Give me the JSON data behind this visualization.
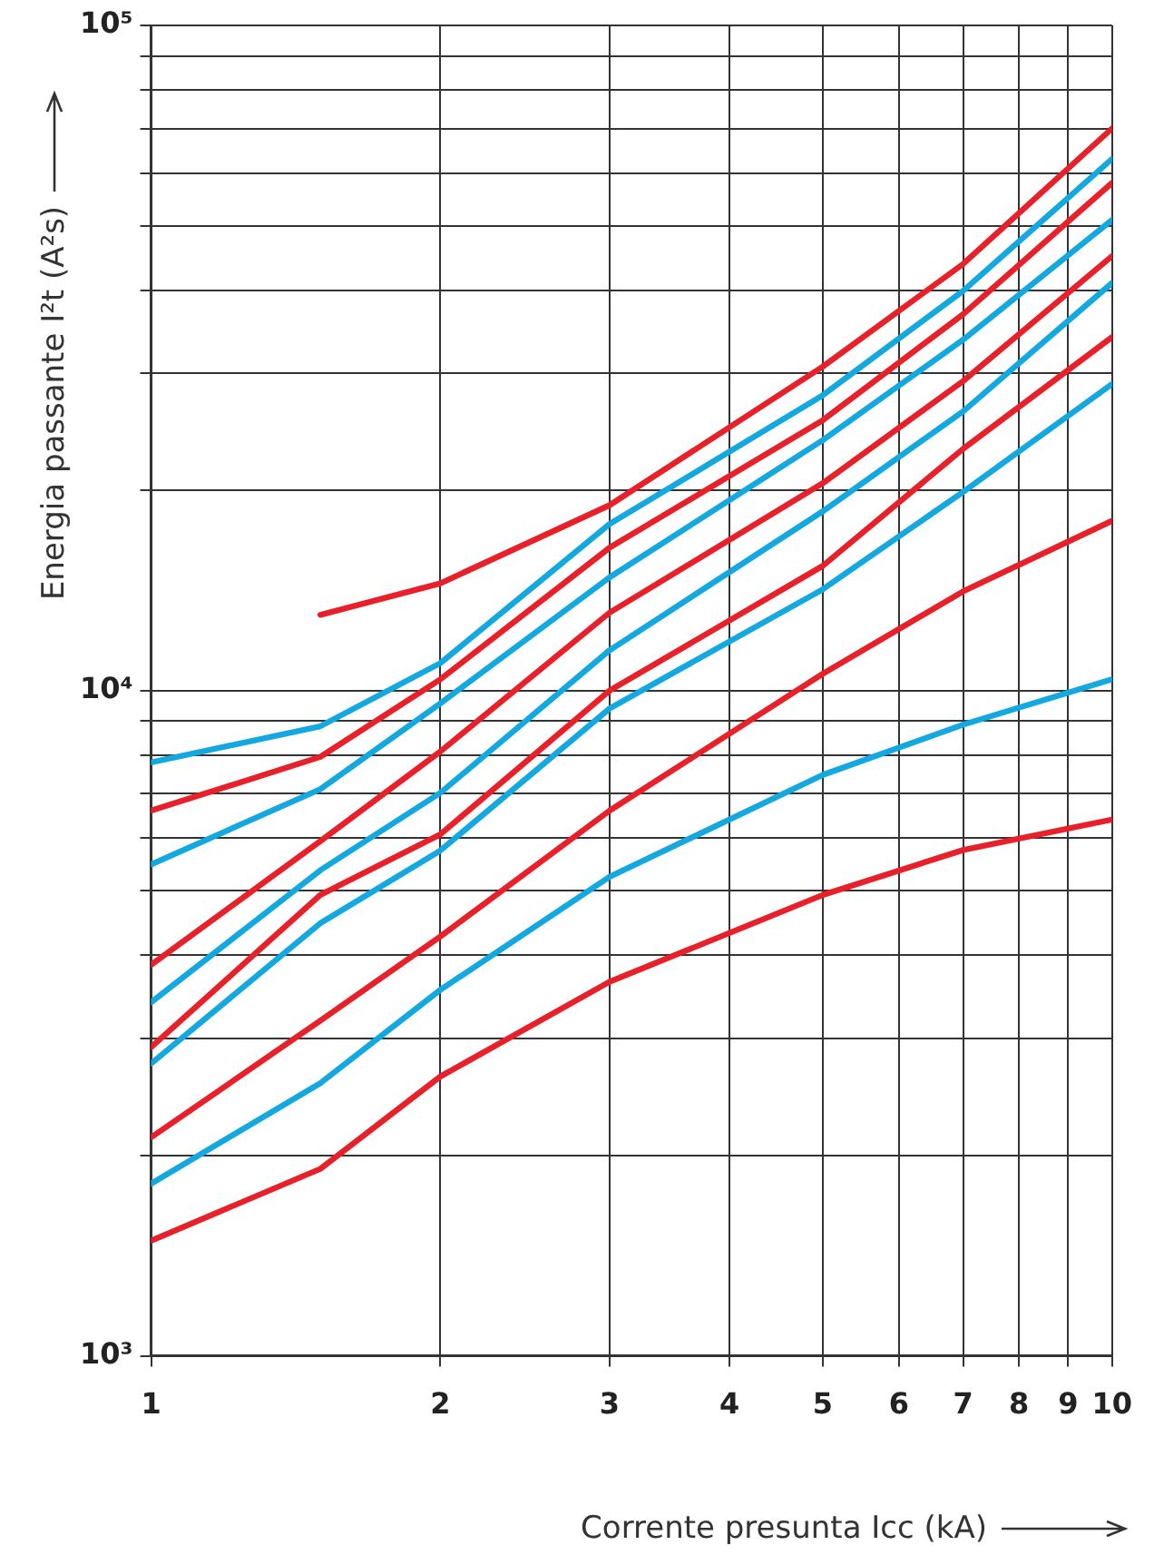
{
  "chart_data": {
    "type": "line",
    "xlabel": "Corrente presunta Icc (kA)",
    "ylabel": "Energia passante I²t (A²s)",
    "log": "xy",
    "grid": true,
    "marker": "none",
    "line_style": "solid",
    "xlim": [
      1,
      10
    ],
    "xticks": [
      1,
      2,
      3,
      4,
      5,
      6,
      7,
      8,
      9,
      10
    ],
    "ylim": [
      1000,
      100000
    ],
    "yticks": [
      {
        "value": 1000,
        "label": "10³"
      },
      {
        "value": 2000,
        "label": null
      },
      {
        "value": 3000,
        "label": null
      },
      {
        "value": 4000,
        "label": null
      },
      {
        "value": 5000,
        "label": null
      },
      {
        "value": 6000,
        "label": null
      },
      {
        "value": 7000,
        "label": null
      },
      {
        "value": 8000,
        "label": null
      },
      {
        "value": 9000,
        "label": null
      },
      {
        "value": 10000,
        "label": "10⁴"
      },
      {
        "value": 20000,
        "label": null
      },
      {
        "value": 30000,
        "label": null
      },
      {
        "value": 40000,
        "label": null
      },
      {
        "value": 50000,
        "label": null
      },
      {
        "value": 60000,
        "label": null
      },
      {
        "value": 70000,
        "label": null
      },
      {
        "value": 80000,
        "label": null
      },
      {
        "value": 90000,
        "label": null
      },
      {
        "value": 100000,
        "label": "10⁵"
      }
    ],
    "x": [
      1,
      1.5,
      2,
      3,
      5,
      7,
      10
    ],
    "series": [
      {
        "color": "#e8202a",
        "values": [
          null,
          13000,
          14500,
          19000,
          30700,
          43800,
          70000
        ]
      },
      {
        "color": "#13a8e0",
        "values": [
          7800,
          8840,
          11000,
          17800,
          27800,
          39900,
          63000
        ]
      },
      {
        "color": "#e8202a",
        "values": [
          6600,
          7950,
          10400,
          16400,
          25500,
          36800,
          58000
        ]
      },
      {
        "color": "#13a8e0",
        "values": [
          5480,
          7110,
          9570,
          14800,
          23800,
          33700,
          51000
        ]
      },
      {
        "color": "#e8202a",
        "values": [
          3870,
          5940,
          8100,
          13100,
          20500,
          29200,
          45000
        ]
      },
      {
        "color": "#13a8e0",
        "values": [
          3400,
          5370,
          7020,
          11500,
          18600,
          26300,
          41000
        ]
      },
      {
        "color": "#e8202a",
        "values": [
          2910,
          4930,
          6080,
          10000,
          15400,
          23100,
          34000
        ]
      },
      {
        "color": "#13a8e0",
        "values": [
          2750,
          4470,
          5750,
          9400,
          14200,
          19900,
          28900
        ]
      },
      {
        "color": "#e8202a",
        "values": [
          2130,
          3190,
          4270,
          6600,
          10600,
          14100,
          18000
        ]
      },
      {
        "color": "#13a8e0",
        "values": [
          1815,
          2570,
          3550,
          5250,
          7470,
          8890,
          10400
        ]
      },
      {
        "color": "#e8202a",
        "values": [
          1490,
          1910,
          2630,
          3650,
          4930,
          5760,
          6400
        ]
      }
    ]
  }
}
